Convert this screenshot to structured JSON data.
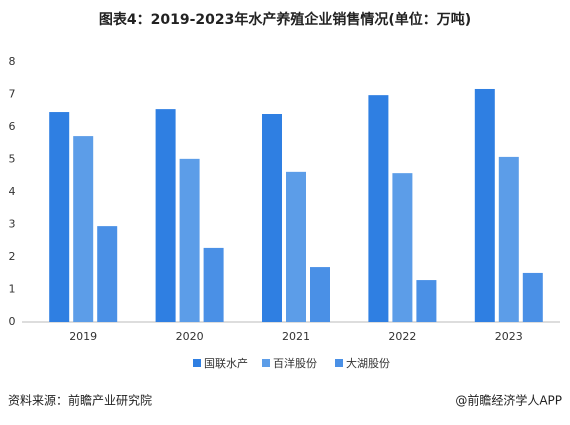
{
  "chart_data": {
    "type": "bar",
    "title": "图表4：2019-2023年水产养殖企业销售情况(单位：万吨)",
    "categories": [
      "2019",
      "2020",
      "2021",
      "2022",
      "2023"
    ],
    "series": [
      {
        "name": "国联水产",
        "color": "#2f7fe2",
        "values": [
          6.46,
          6.55,
          6.4,
          6.98,
          7.17
        ]
      },
      {
        "name": "百洋股份",
        "color": "#5c9de8",
        "values": [
          5.72,
          5.02,
          4.62,
          4.58,
          5.08
        ]
      },
      {
        "name": "大湖股份",
        "color": "#4a90e6",
        "values": [
          2.95,
          2.28,
          1.69,
          1.29,
          1.51
        ]
      }
    ],
    "ylim": [
      0,
      8
    ],
    "yticks": [
      0,
      1,
      2,
      3,
      4,
      5,
      6,
      7,
      8
    ],
    "legend": "bottom",
    "source": "资料来源：前瞻产业研究院",
    "watermark": "@前瞻经济学人APP"
  }
}
